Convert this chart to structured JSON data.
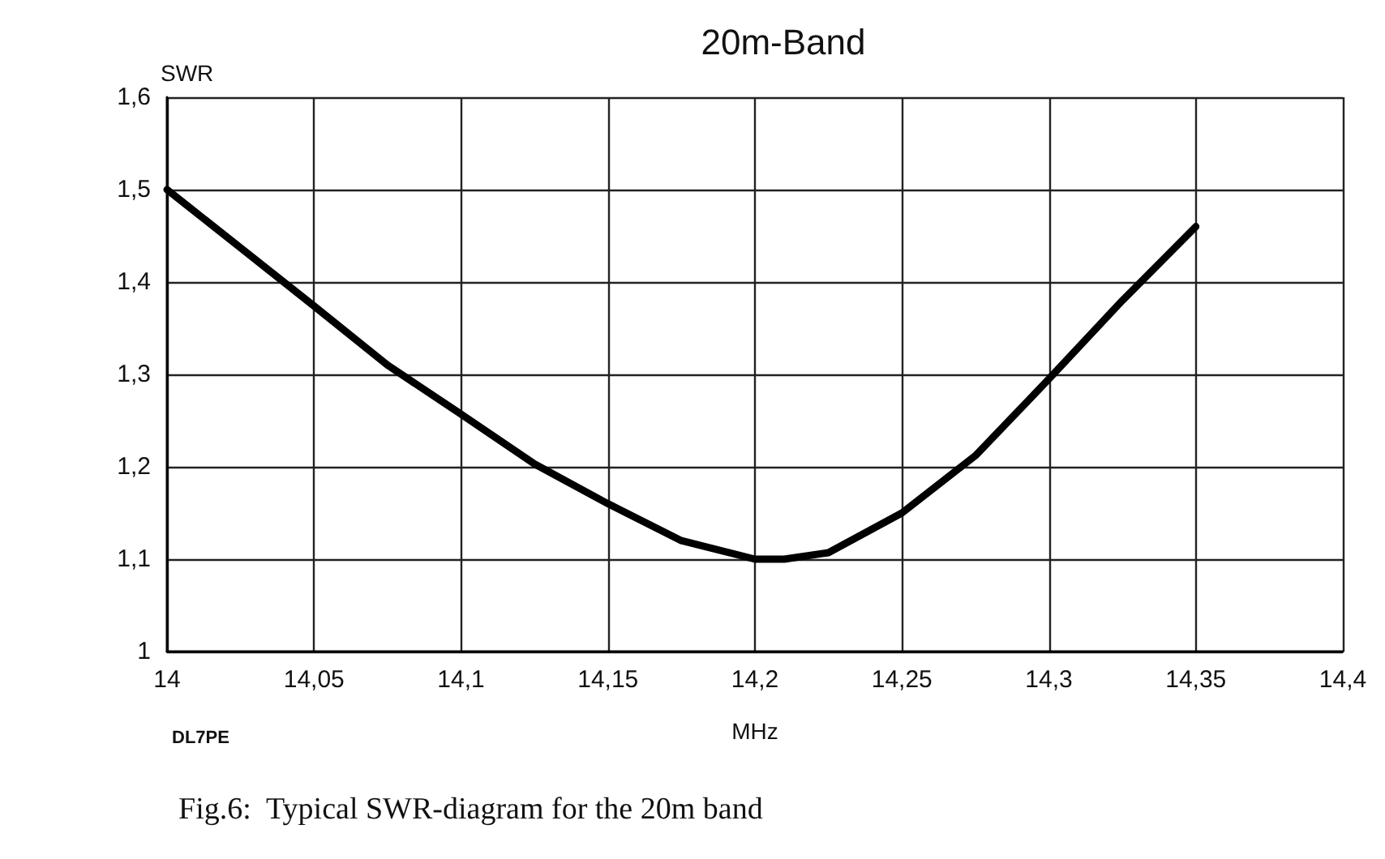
{
  "chart_data": {
    "type": "line",
    "title": "20m-Band",
    "xlabel": "MHz",
    "ylabel": "SWR",
    "annotations": [
      "DL7PE",
      "Fig.6:  Typical SWR-diagram for the 20m band"
    ],
    "x": [
      14,
      14.025,
      14.05,
      14.075,
      14.1,
      14.125,
      14.15,
      14.175,
      14.2,
      14.21,
      14.225,
      14.25,
      14.275,
      14.3,
      14.325,
      14.35
    ],
    "series": [
      {
        "color": "#000000",
        "values": [
          1.5,
          1.437,
          1.374,
          1.31,
          1.257,
          1.203,
          1.16,
          1.12,
          1.1,
          1.1,
          1.107,
          1.15,
          1.212,
          1.295,
          1.38,
          1.46
        ]
      }
    ],
    "xlim": [
      14,
      14.4
    ],
    "xticks": [
      14,
      {
        "value": 14.05,
        "label": "14,05"
      },
      {
        "value": 14.1,
        "label": "14,1"
      },
      {
        "value": 14.15,
        "label": "14,15"
      },
      {
        "value": 14.2,
        "label": "14,2"
      },
      {
        "value": 14.25,
        "label": "14,25"
      },
      {
        "value": 14.3,
        "label": "14,3"
      },
      {
        "value": 14.35,
        "label": "14,35"
      },
      {
        "value": 14.4,
        "label": "14,4"
      }
    ],
    "ylim": [
      1,
      1.6
    ],
    "yticks": [
      1,
      {
        "value": 1.1,
        "label": "1,1"
      },
      {
        "value": 1.2,
        "label": "1,2"
      },
      {
        "value": 1.3,
        "label": "1,3"
      },
      {
        "value": 1.4,
        "label": "1,4"
      },
      {
        "value": 1.5,
        "label": "1,5"
      },
      {
        "value": 1.6,
        "label": "1,6"
      }
    ],
    "grid": true,
    "marker": "none",
    "line_style": "solid"
  }
}
